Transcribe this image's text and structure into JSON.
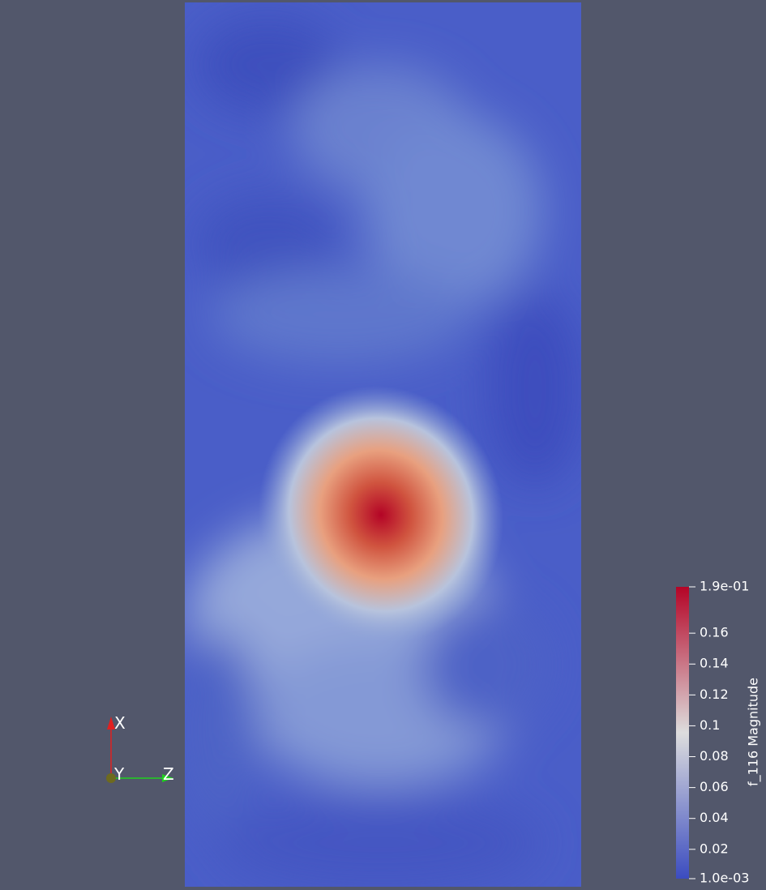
{
  "colorbar": {
    "title": "f_116 Magnitude",
    "range": [
      0.001,
      0.19
    ],
    "colors": [
      "#3b4cc0",
      "#dddddd",
      "#b40426"
    ],
    "ticks": [
      {
        "value": 0.19,
        "label": "1.9e-01"
      },
      0.16,
      0.14,
      0.12,
      0.1,
      0.08,
      0.06,
      0.04,
      0.02,
      {
        "value": 0.001,
        "label": "1.0e-03"
      }
    ]
  },
  "orientation_axes": {
    "x": "X",
    "y": "Y",
    "z": "Z"
  }
}
